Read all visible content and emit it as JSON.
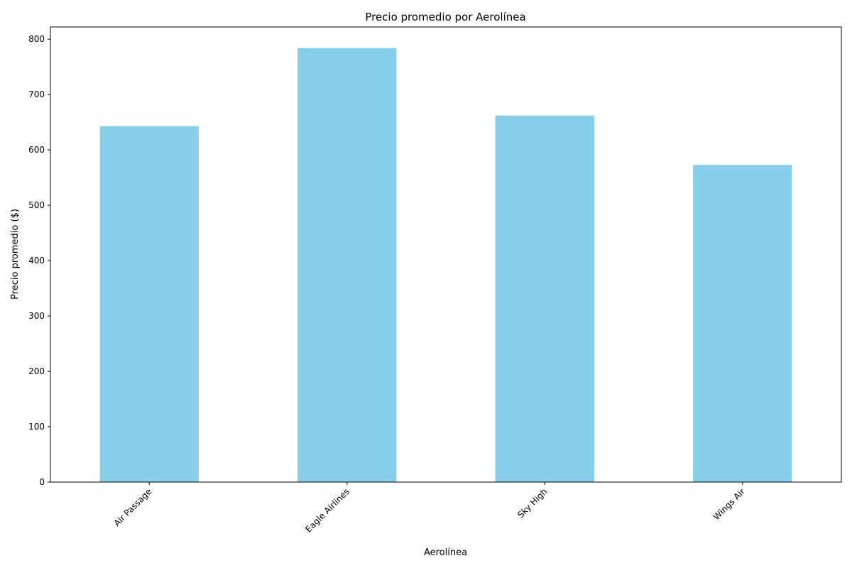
{
  "chart_data": {
    "type": "bar",
    "title": "Precio promedio por Aerolínea",
    "xlabel": "Aerolínea",
    "ylabel": "Precio promedio ($)",
    "categories": [
      "Air Passage",
      "Eagle Airlines",
      "Sky High",
      "Wings Air"
    ],
    "values": [
      643,
      784,
      662,
      573
    ],
    "ylim": [
      0,
      822
    ],
    "yticks": [
      0,
      100,
      200,
      300,
      400,
      500,
      600,
      700,
      800
    ],
    "grid": false,
    "bar_color": "#87CEEB",
    "x_tick_rotation_deg": 45
  }
}
